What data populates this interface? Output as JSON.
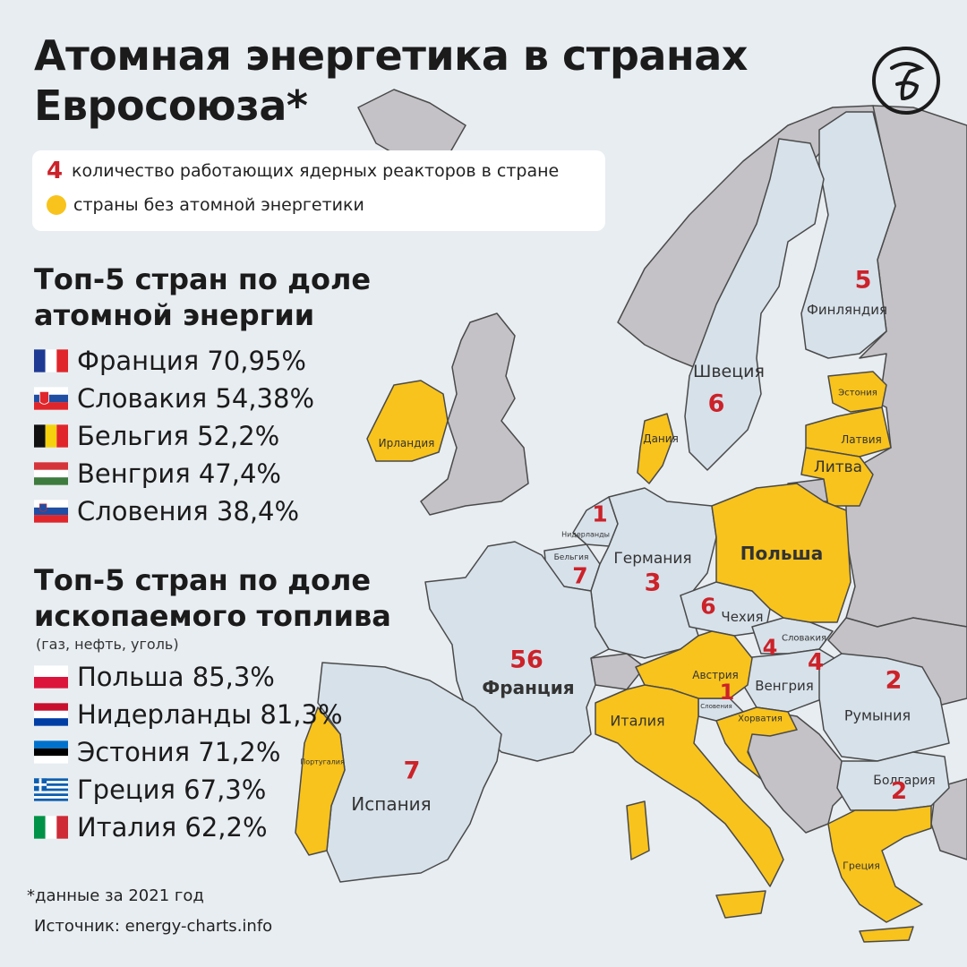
{
  "title_line1": "Атомная энергетика в странах",
  "title_line2": "Евросоюза*",
  "colors": {
    "sea": "#e8edf1",
    "nuclear": "#d7e1ea",
    "no_nuclear": "#f8c31c",
    "non_eu": "#c4c2c6",
    "number": "#cc2229",
    "border": "#4a4a4a"
  },
  "legend": {
    "reactors_example": "4",
    "reactors_text": "количество работающих ядерных реакторов в стране",
    "no_nuclear_text": "страны без атомной энергетики"
  },
  "top_nuclear": {
    "title_line1": "Топ-5 стран по доле",
    "title_line2": "атомной энергии",
    "items": [
      {
        "flag": "france",
        "text": "Франция 70,95%"
      },
      {
        "flag": "slovakia",
        "text": "Словакия  54,38%"
      },
      {
        "flag": "belgium",
        "text": "Бельгия  52,2%"
      },
      {
        "flag": "hungary",
        "text": "Венгрия 47,4%"
      },
      {
        "flag": "slovenia",
        "text": "Словения 38,4%"
      }
    ]
  },
  "top_fossil": {
    "title_line1": "Топ-5 стран по доле",
    "title_line2": "ископаемого топлива",
    "subtitle": "(газ, нефть, уголь)",
    "items": [
      {
        "flag": "poland",
        "text": "Польша 85,3%"
      },
      {
        "flag": "netherlands",
        "text": "Нидерланды 81,3%"
      },
      {
        "flag": "estonia",
        "text": "Эстония  71,2%"
      },
      {
        "flag": "greece",
        "text": "Греция 67,3%"
      },
      {
        "flag": "italy",
        "text": "Италия 62,2%"
      }
    ]
  },
  "footnote": "*данные за 2021 год",
  "source": "Источник: energy-charts.info",
  "countries": {
    "finland": {
      "name": "Финляндия",
      "reactors": "5"
    },
    "sweden": {
      "name": "Швеция",
      "reactors": "6"
    },
    "estonia": {
      "name": "Эстония"
    },
    "latvia": {
      "name": "Латвия"
    },
    "lithuania": {
      "name": "Литва"
    },
    "denmark": {
      "name": "Дания"
    },
    "ireland": {
      "name": "Ирландия"
    },
    "netherlands": {
      "name": "Нидерланды",
      "reactors": "1"
    },
    "belgium": {
      "name": "Бельгия",
      "reactors": "7"
    },
    "germany": {
      "name": "Германия",
      "reactors": "3"
    },
    "poland": {
      "name": "Польша"
    },
    "czechia": {
      "name": "Чехия",
      "reactors": "6"
    },
    "slovakia": {
      "name": "Словакия",
      "reactors": "4"
    },
    "austria": {
      "name": "Австрия"
    },
    "hungary": {
      "name": "Венгрия",
      "reactors": "4"
    },
    "slovenia": {
      "name": "Словения",
      "reactors": "1"
    },
    "croatia": {
      "name": "Хорватия"
    },
    "romania": {
      "name": "Румыния",
      "reactors": "2"
    },
    "bulgaria": {
      "name": "Болгария",
      "reactors": "2"
    },
    "france": {
      "name": "Франция",
      "reactors": "56"
    },
    "italy": {
      "name": "Италия"
    },
    "portugal": {
      "name": "Португалия"
    },
    "spain": {
      "name": "Испания",
      "reactors": "7"
    },
    "greece": {
      "name": "Греция"
    }
  }
}
